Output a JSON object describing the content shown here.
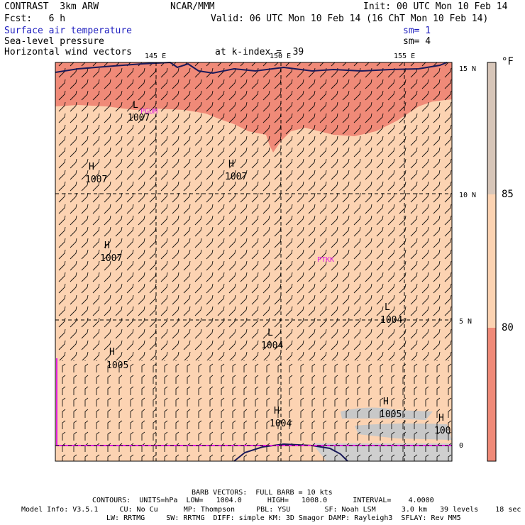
{
  "header": {
    "model": "CONTRAST  3km ARW",
    "center": "NCAR/MMM",
    "init": "Init: 00 UTC Mon 10 Feb 14",
    "fcst": "Fcst:   6 h",
    "valid": "Valid: 06 UTC Mon 10 Feb 14 (16 ChT Mon 10 Feb 14)",
    "field1": "Surface air temperature",
    "field1_sm": "sm= 1",
    "field2": "Sea-level pressure",
    "field2_sm": "sm= 4",
    "field3": "Horizontal wind vectors",
    "k_index": "at k-index =  39"
  },
  "map": {
    "lon_labels": [
      "145 E",
      "150 E",
      "155 E"
    ],
    "lat_labels": [
      "15 N",
      "10 N",
      "5 N",
      "0"
    ],
    "stations": [
      "PGUM",
      "PTKK"
    ],
    "pressure_centers": [
      {
        "type": "L",
        "value": "1007"
      },
      {
        "type": "H",
        "value": "1007"
      },
      {
        "type": "H",
        "value": "1007"
      },
      {
        "type": "H",
        "value": "1007"
      },
      {
        "type": "L",
        "value": "1004"
      },
      {
        "type": "L",
        "value": "1004"
      },
      {
        "type": "H",
        "value": "1005"
      },
      {
        "type": "H",
        "value": "1004"
      },
      {
        "type": "H",
        "value": "1005"
      },
      {
        "type": "H",
        "value": "100"
      }
    ],
    "colors": {
      "warm": "#f08a78",
      "mid": "#fcd3b2",
      "land": "#c8c8c8",
      "coast": "#1a1a5a",
      "boundary": "#e020e0",
      "barb": "#000000"
    }
  },
  "colorbar": {
    "unit": "°F",
    "levels": [
      "85",
      "80"
    ],
    "colors": [
      "#d7c6b9",
      "#fcd3b2",
      "#f08a78"
    ]
  },
  "footer": {
    "barb": "BARB VECTORS:  FULL BARB = 10 kts",
    "contours": "CONTOURS:  UNITS=hPa  LOW=   1004.0      HIGH=   1008.0      INTERVAL=    4.0000",
    "model_info_1": "Model Info: V3.5.1     CU: No Cu      MP: Thompson     PBL: YSU        SF: Noah LSM      3.0 km   39 levels    18 sec",
    "model_info_2": "LW: RRTMG     SW: RRTMG  DIFF: simple KM: 3D Smagor DAMP: Rayleigh3  SFLAY: Rev MM5"
  }
}
